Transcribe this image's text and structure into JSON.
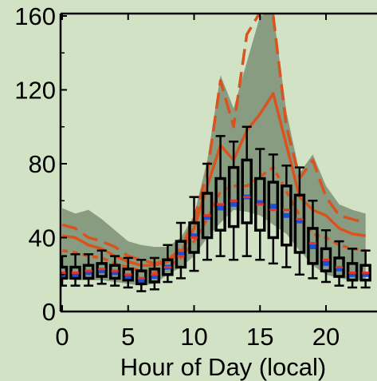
{
  "chart_data": {
    "type": "box",
    "xlabel": "Hour of Day (local)",
    "ylabel": "",
    "xlim": [
      0,
      24
    ],
    "ylim": [
      0,
      160
    ],
    "xticks": [
      0,
      5,
      10,
      15,
      20
    ],
    "yticks": [
      0,
      40,
      80,
      120,
      160
    ],
    "grid": false,
    "colors": {
      "background": "#d2e2c4",
      "band": "#7a8f75",
      "orange": "#d9531e",
      "median": "#e0332b",
      "mean": "#1f4fd1",
      "box": "#000000"
    },
    "hours": [
      0,
      1,
      2,
      3,
      4,
      5,
      6,
      7,
      8,
      9,
      10,
      11,
      12,
      13,
      14,
      15,
      16,
      17,
      18,
      19,
      20,
      21,
      22,
      23
    ],
    "shaded_band": {
      "lower": [
        18,
        17,
        17,
        17,
        16,
        15,
        14,
        15,
        20,
        24,
        30,
        40,
        48,
        55,
        54,
        52,
        47,
        42,
        33,
        25,
        20,
        18,
        17,
        17
      ],
      "upper": [
        56,
        53,
        55,
        50,
        44,
        38,
        36,
        35,
        35,
        40,
        52,
        82,
        128,
        110,
        135,
        160,
        162,
        108,
        75,
        85,
        68,
        58,
        55,
        53
      ]
    },
    "series": [
      {
        "values": [
          47,
          45,
          40,
          38,
          35,
          30,
          28,
          26,
          28,
          34,
          50,
          75,
          125,
          100,
          150,
          162,
          160,
          100,
          72,
          82,
          62,
          52,
          50,
          48
        ]
      },
      {
        "values": [
          41,
          40,
          36,
          34,
          30,
          27,
          25,
          25,
          27,
          32,
          45,
          68,
          90,
          82,
          98,
          107,
          118,
          90,
          62,
          55,
          52,
          45,
          42,
          41
        ]
      },
      {
        "values": [
          33,
          32,
          30,
          29,
          26,
          24,
          22,
          21,
          24,
          29,
          38,
          50,
          65,
          68,
          68,
          73,
          78,
          65,
          52,
          42,
          40,
          36,
          34,
          33
        ]
      }
    ],
    "boxes": [
      {
        "hour": 0,
        "whisker_low": 14,
        "q1": 18,
        "median": 21,
        "mean": 20,
        "q3": 24,
        "whisker_high": 30
      },
      {
        "hour": 1,
        "whisker_low": 14,
        "q1": 18,
        "median": 21,
        "mean": 20,
        "q3": 24,
        "whisker_high": 31
      },
      {
        "hour": 2,
        "whisker_low": 14,
        "q1": 18,
        "median": 22,
        "mean": 21,
        "q3": 25,
        "whisker_high": 31
      },
      {
        "hour": 3,
        "whisker_low": 15,
        "q1": 19,
        "median": 23,
        "mean": 22,
        "q3": 26,
        "whisker_high": 33
      },
      {
        "hour": 4,
        "whisker_low": 14,
        "q1": 18,
        "median": 22,
        "mean": 21,
        "q3": 25,
        "whisker_high": 30
      },
      {
        "hour": 5,
        "whisker_low": 13,
        "q1": 17,
        "median": 20,
        "mean": 19,
        "q3": 23,
        "whisker_high": 29
      },
      {
        "hour": 6,
        "whisker_low": 11,
        "q1": 15,
        "median": 18,
        "mean": 17,
        "q3": 22,
        "whisker_high": 28
      },
      {
        "hour": 7,
        "whisker_low": 12,
        "q1": 16,
        "median": 20,
        "mean": 19,
        "q3": 23,
        "whisker_high": 29
      },
      {
        "hour": 8,
        "whisker_low": 16,
        "q1": 20,
        "median": 24,
        "mean": 24,
        "q3": 28,
        "whisker_high": 36
      },
      {
        "hour": 9,
        "whisker_low": 18,
        "q1": 24,
        "median": 30,
        "mean": 31,
        "q3": 38,
        "whisker_high": 48
      },
      {
        "hour": 10,
        "whisker_low": 22,
        "q1": 32,
        "median": 40,
        "mean": 41,
        "q3": 48,
        "whisker_high": 62
      },
      {
        "hour": 11,
        "whisker_low": 28,
        "q1": 40,
        "median": 52,
        "mean": 51,
        "q3": 64,
        "whisker_high": 80
      },
      {
        "hour": 12,
        "whisker_low": 30,
        "q1": 44,
        "median": 58,
        "mean": 56,
        "q3": 72,
        "whisker_high": 95
      },
      {
        "hour": 13,
        "whisker_low": 28,
        "q1": 46,
        "median": 60,
        "mean": 58,
        "q3": 78,
        "whisker_high": 92
      },
      {
        "hour": 14,
        "whisker_low": 30,
        "q1": 48,
        "median": 62,
        "mean": 62,
        "q3": 82,
        "whisker_high": 100
      },
      {
        "hour": 15,
        "whisker_low": 28,
        "q1": 44,
        "median": 58,
        "mean": 59,
        "q3": 72,
        "whisker_high": 88
      },
      {
        "hour": 16,
        "whisker_low": 26,
        "q1": 40,
        "median": 55,
        "mean": 57,
        "q3": 70,
        "whisker_high": 85
      },
      {
        "hour": 17,
        "whisker_low": 24,
        "q1": 36,
        "median": 55,
        "mean": 52,
        "q3": 68,
        "whisker_high": 79
      },
      {
        "hour": 18,
        "whisker_low": 20,
        "q1": 32,
        "median": 50,
        "mean": 49,
        "q3": 63,
        "whisker_high": 78
      },
      {
        "hour": 19,
        "whisker_low": 18,
        "q1": 26,
        "median": 37,
        "mean": 35,
        "q3": 45,
        "whisker_high": 60
      },
      {
        "hour": 20,
        "whisker_low": 16,
        "q1": 22,
        "median": 28,
        "mean": 26,
        "q3": 34,
        "whisker_high": 44
      },
      {
        "hour": 21,
        "whisker_low": 14,
        "q1": 19,
        "median": 24,
        "mean": 23,
        "q3": 29,
        "whisker_high": 38
      },
      {
        "hour": 22,
        "whisker_low": 13,
        "q1": 17,
        "median": 21,
        "mean": 20,
        "q3": 26,
        "whisker_high": 34
      },
      {
        "hour": 23,
        "whisker_low": 13,
        "q1": 17,
        "median": 21,
        "mean": 20,
        "q3": 25,
        "whisker_high": 33
      }
    ]
  }
}
